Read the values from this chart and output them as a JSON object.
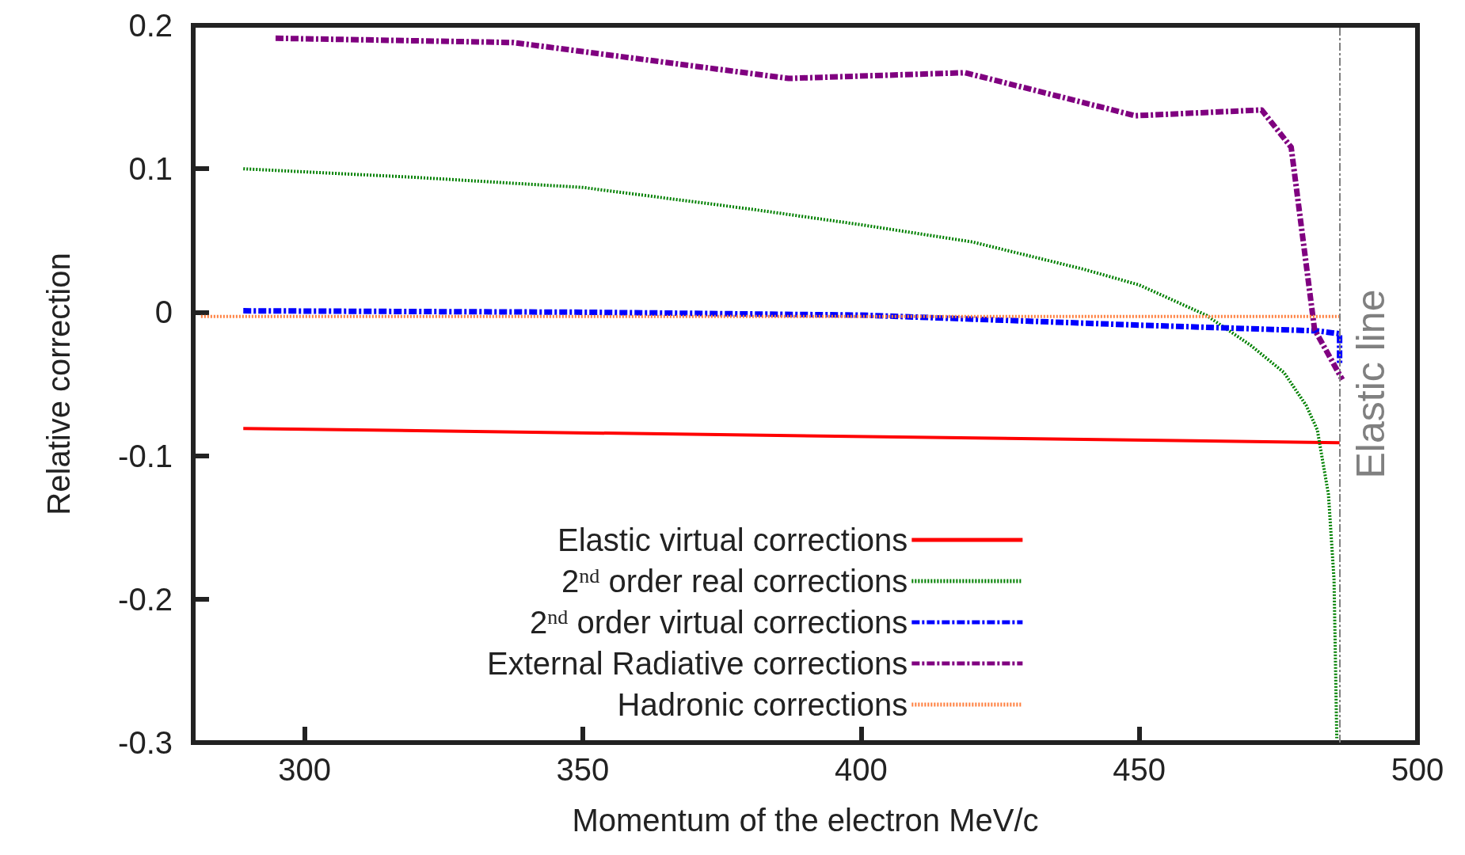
{
  "chart_data": {
    "type": "line",
    "xlabel": "Momentum of the electron MeV/c",
    "ylabel": "Relative correction",
    "xlim": [
      280,
      500
    ],
    "xticks": [
      300,
      350,
      400,
      450,
      500
    ],
    "ylim": [
      -0.3,
      0.2
    ],
    "yticks": [
      -0.3,
      -0.2,
      -0.1,
      0,
      0.1,
      0.2
    ],
    "grid": false,
    "legend": "bottom",
    "marker": "none",
    "series": [
      {
        "name": "Elastic virtual corrections",
        "color": "#ff0000",
        "line_style": "solid",
        "x": [
          289,
          486
        ],
        "values": [
          -0.081,
          -0.091
        ]
      },
      {
        "name": "2$^{nd}$ order real corrections",
        "color": "#008000",
        "line_style": "dotted",
        "x": [
          289,
          320,
          350,
          380,
          400,
          420,
          440,
          450,
          462,
          470,
          476,
          480,
          482,
          484,
          485,
          485.5
        ],
        "values": [
          0.1,
          0.094,
          0.087,
          0.072,
          0.061,
          0.049,
          0.03,
          0.019,
          -0.002,
          -0.023,
          -0.042,
          -0.065,
          -0.082,
          -0.127,
          -0.186,
          -0.297
        ]
      },
      {
        "name": "2$^{nd}$ order virtual corrections",
        "color": "#0000ff",
        "line_style": "dashed",
        "x": [
          289,
          350,
          400,
          450,
          482,
          486,
          486
        ],
        "values": [
          0.001,
          0,
          -0.002,
          -0.009,
          -0.013,
          -0.015,
          -0.036
        ]
      },
      {
        "name": "External Radiative corrections",
        "color": "#800080",
        "line_style": "dashed",
        "x": [
          294.8,
          337.6,
          387,
          418.7,
          449.3,
          472,
          477.3,
          481.5,
          486.5
        ],
        "values": [
          0.191,
          0.188,
          0.163,
          0.167,
          0.137,
          0.141,
          0.115,
          -0.012,
          -0.047
        ]
      },
      {
        "name": "Hadronic corrections",
        "color": "#ff8040",
        "line_style": "dotted",
        "x": [
          281.4,
          486
        ],
        "values": [
          -0.003,
          -0.003
        ]
      }
    ],
    "ref_lines": [
      {
        "axis": "x",
        "value": 486,
        "label": "Elastic line",
        "color": "#808080",
        "line_style": "dashed"
      }
    ]
  }
}
